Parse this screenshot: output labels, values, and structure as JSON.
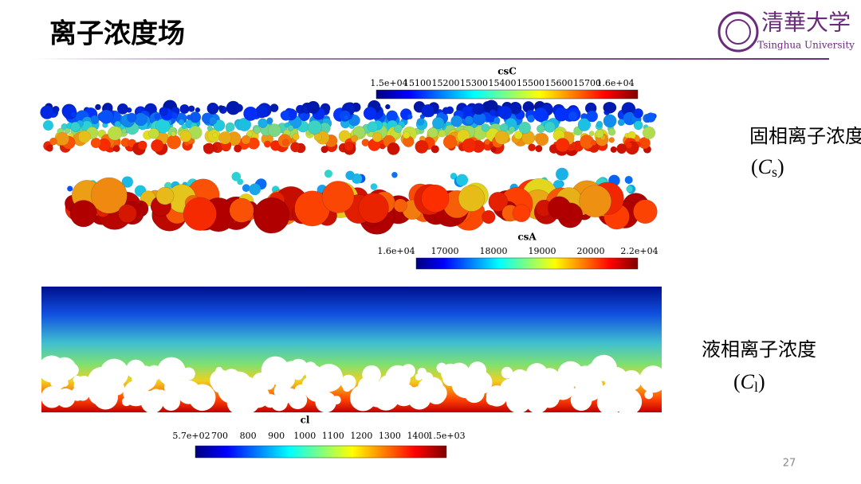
{
  "header": {
    "title": "离子浓度场",
    "logo": {
      "name": "清華大学",
      "subtitle": "Tsinghua University"
    }
  },
  "colorbars": [
    {
      "title": "csC",
      "ticks": [
        "1.5e+04",
        "15100",
        "15200",
        "15300",
        "15400",
        "15500",
        "15600",
        "15700",
        "1.6e+04"
      ]
    },
    {
      "title": "csA",
      "ticks": [
        "1.6e+04",
        "17000",
        "18000",
        "19000",
        "20000",
        "2.2e+04"
      ]
    },
    {
      "title": "cl",
      "ticks": [
        "5.7e+02",
        "700",
        "800",
        "900",
        "1000",
        "1100",
        "1200",
        "1300",
        "1400",
        "1.5e+03"
      ]
    }
  ],
  "labels": [
    {
      "text": "固相离子浓度",
      "notation": {
        "open": "(",
        "symbol": "C",
        "subscript": "s",
        "close": ")"
      }
    },
    {
      "text": "液相离子浓度",
      "notation": {
        "open": "(",
        "symbol": "C",
        "subscript": "l",
        "close": ")"
      }
    }
  ],
  "page_number": "27"
}
